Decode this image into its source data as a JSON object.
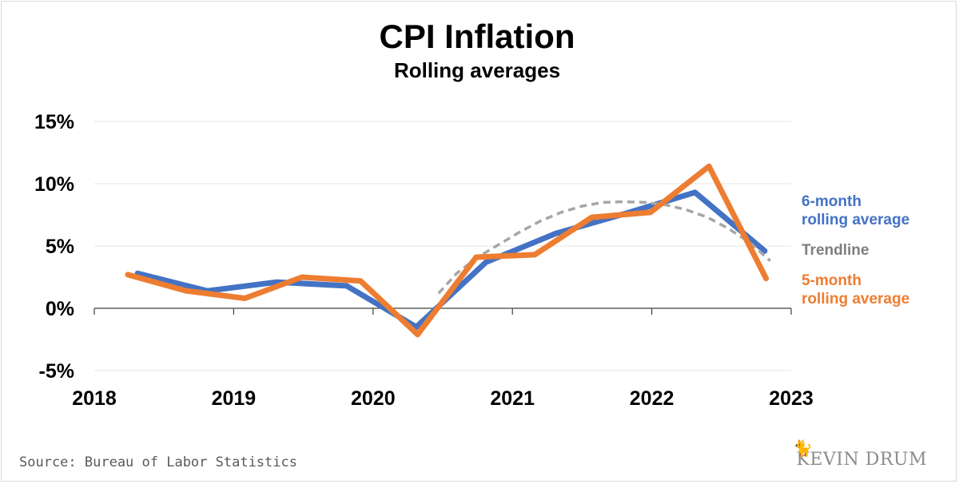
{
  "chart_data": {
    "type": "line",
    "title": "CPI Inflation",
    "subtitle": "Rolling averages",
    "xlim": [
      2018,
      2023
    ],
    "ylim": [
      -5,
      15
    ],
    "x_ticks": [
      "2018",
      "2019",
      "2020",
      "2021",
      "2022",
      "2023"
    ],
    "y_ticks": [
      "15%",
      "10%",
      "5%",
      "0%",
      "-5%"
    ],
    "grid": true,
    "legend": "right",
    "series": [
      {
        "name": "6-month rolling average",
        "color": "#4472c4",
        "style": "solid",
        "x": [
          2018.31,
          2018.81,
          2019.31,
          2019.81,
          2020.31,
          2020.81,
          2021.31,
          2021.81,
          2022.31,
          2022.81
        ],
        "y": [
          2.8,
          1.4,
          2.1,
          1.8,
          -1.5,
          3.7,
          6.0,
          7.6,
          9.3,
          4.6
        ]
      },
      {
        "name": "Trendline",
        "color": "#a6a6a6",
        "style": "dashed",
        "x": [
          2020.47,
          2020.6,
          2020.75,
          2020.9,
          2021.05,
          2021.2,
          2021.35,
          2021.5,
          2021.65,
          2021.8,
          2021.95,
          2022.1,
          2022.25,
          2022.4,
          2022.55,
          2022.7,
          2022.85
        ],
        "y": [
          1.2,
          2.8,
          4.1,
          5.1,
          6.1,
          7.0,
          7.7,
          8.2,
          8.5,
          8.55,
          8.5,
          8.3,
          7.9,
          7.3,
          6.4,
          5.3,
          3.8
        ]
      },
      {
        "name": "5-month rolling average",
        "color": "#ed7d31",
        "style": "solid",
        "x": [
          2018.24,
          2018.66,
          2019.08,
          2019.49,
          2019.91,
          2020.32,
          2020.74,
          2021.16,
          2021.57,
          2021.99,
          2022.41,
          2022.82
        ],
        "y": [
          2.7,
          1.4,
          0.8,
          2.5,
          2.2,
          -2.1,
          4.1,
          4.3,
          7.3,
          7.7,
          11.4,
          2.4
        ]
      }
    ]
  },
  "footer": {
    "source": "Source: Bureau of Labor Statistics",
    "brand": "KEVIN DRUM"
  }
}
